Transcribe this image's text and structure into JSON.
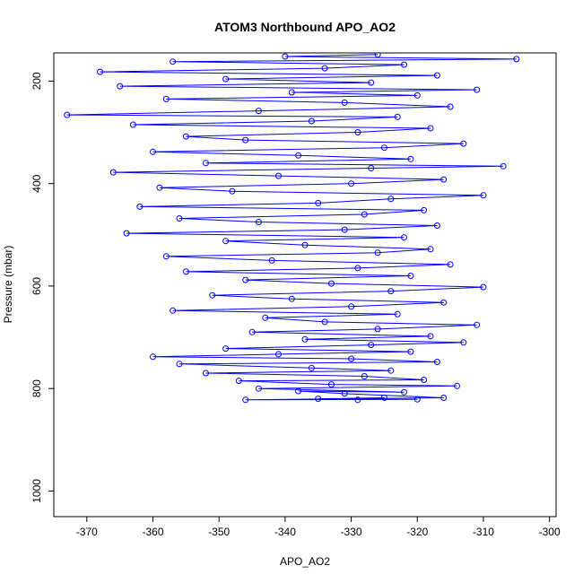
{
  "chart_data": {
    "type": "scatter",
    "title": "ATOM3 Northbound APO_AO2",
    "xlabel": "APO_AO2",
    "ylabel": "Pressure (mbar)",
    "xlim": [
      -375,
      -299
    ],
    "ylim": [
      1050,
      145
    ],
    "y_inverted": true,
    "xticks": [
      -370,
      -360,
      -350,
      -340,
      -330,
      -320,
      -310,
      -300
    ],
    "yticks": [
      200,
      400,
      600,
      800,
      1000
    ],
    "grid": false,
    "legend": "none",
    "marker": "open-circle",
    "connect_points": true,
    "series_color": "#0000ff",
    "series": [
      {
        "points": [
          [
            -329,
            822
          ],
          [
            -325,
            818
          ],
          [
            -335,
            820
          ],
          [
            -320,
            821
          ],
          [
            -346,
            822
          ],
          [
            -316,
            818
          ],
          [
            -331,
            810
          ],
          [
            -338,
            805
          ],
          [
            -322,
            807
          ],
          [
            -344,
            800
          ],
          [
            -314,
            795
          ],
          [
            -333,
            792
          ],
          [
            -347,
            785
          ],
          [
            -319,
            783
          ],
          [
            -328,
            776
          ],
          [
            -352,
            770
          ],
          [
            -324,
            765
          ],
          [
            -336,
            760
          ],
          [
            -356,
            752
          ],
          [
            -317,
            748
          ],
          [
            -330,
            742
          ],
          [
            -360,
            738
          ],
          [
            -341,
            733
          ],
          [
            -321,
            728
          ],
          [
            -349,
            722
          ],
          [
            -327,
            715
          ],
          [
            -313,
            710
          ],
          [
            -337,
            704
          ],
          [
            -318,
            698
          ],
          [
            -345,
            690
          ],
          [
            -326,
            684
          ],
          [
            -311,
            676
          ],
          [
            -334,
            670
          ],
          [
            -343,
            662
          ],
          [
            -323,
            655
          ],
          [
            -357,
            648
          ],
          [
            -330,
            640
          ],
          [
            -316,
            632
          ],
          [
            -339,
            625
          ],
          [
            -351,
            618
          ],
          [
            -324,
            610
          ],
          [
            -310,
            602
          ],
          [
            -333,
            595
          ],
          [
            -346,
            588
          ],
          [
            -321,
            580
          ],
          [
            -355,
            572
          ],
          [
            -329,
            565
          ],
          [
            -315,
            558
          ],
          [
            -342,
            550
          ],
          [
            -358,
            542
          ],
          [
            -326,
            535
          ],
          [
            -318,
            528
          ],
          [
            -337,
            520
          ],
          [
            -349,
            512
          ],
          [
            -322,
            505
          ],
          [
            -364,
            497
          ],
          [
            -331,
            490
          ],
          [
            -317,
            482
          ],
          [
            -344,
            475
          ],
          [
            -356,
            468
          ],
          [
            -328,
            460
          ],
          [
            -319,
            452
          ],
          [
            -362,
            445
          ],
          [
            -335,
            438
          ],
          [
            -324,
            430
          ],
          [
            -310,
            423
          ],
          [
            -348,
            415
          ],
          [
            -359,
            408
          ],
          [
            -330,
            400
          ],
          [
            -316,
            392
          ],
          [
            -341,
            385
          ],
          [
            -366,
            378
          ],
          [
            -327,
            370
          ],
          [
            -307,
            366
          ],
          [
            -352,
            360
          ],
          [
            -321,
            352
          ],
          [
            -338,
            345
          ],
          [
            -360,
            338
          ],
          [
            -325,
            330
          ],
          [
            -313,
            322
          ],
          [
            -346,
            315
          ],
          [
            -355,
            308
          ],
          [
            -329,
            300
          ],
          [
            -318,
            292
          ],
          [
            -363,
            285
          ],
          [
            -336,
            278
          ],
          [
            -323,
            270
          ],
          [
            -373,
            266
          ],
          [
            -344,
            258
          ],
          [
            -315,
            250
          ],
          [
            -331,
            242
          ],
          [
            -358,
            235
          ],
          [
            -320,
            228
          ],
          [
            -339,
            222
          ],
          [
            -311,
            217
          ],
          [
            -365,
            210
          ],
          [
            -327,
            203
          ],
          [
            -349,
            196
          ],
          [
            -317,
            189
          ],
          [
            -368,
            182
          ],
          [
            -334,
            175
          ],
          [
            -322,
            168
          ],
          [
            -357,
            162
          ],
          [
            -305,
            157
          ],
          [
            -340,
            152
          ],
          [
            -326,
            148
          ]
        ]
      }
    ]
  }
}
